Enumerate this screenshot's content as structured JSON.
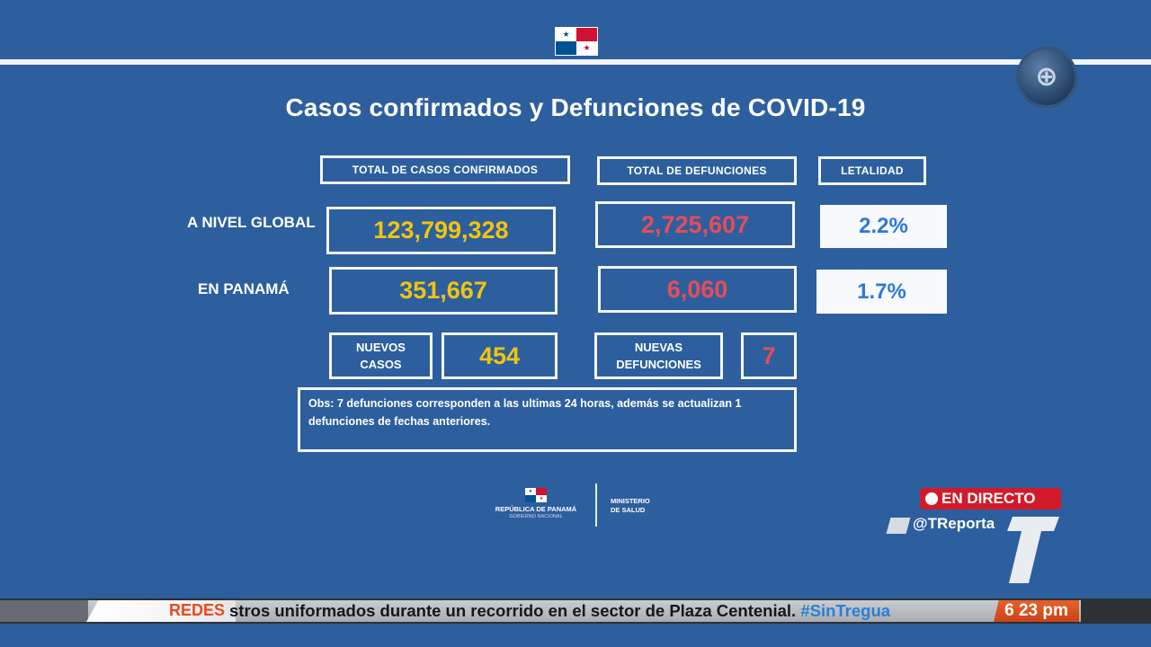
{
  "slide": {
    "title": "Casos confirmados y Defunciones de COVID-19",
    "headers": {
      "total_cases": "TOTAL DE CASOS CONFIRMADOS",
      "total_deaths": "TOTAL DE DEFUNCIONES",
      "lethality": "LETALIDAD"
    },
    "global": {
      "label": "A NIVEL GLOBAL",
      "cases": "123,799,328",
      "deaths": "2,725,607",
      "lethality": "2.2%"
    },
    "panama": {
      "label": "EN PANAMÁ",
      "cases": "351,667",
      "deaths": "6,060",
      "lethality": "1.7%"
    },
    "new_cases": {
      "label_line1": "NUEVOS",
      "label_line2": "CASOS",
      "value": "454"
    },
    "new_deaths": {
      "label_line1": "NUEVAS",
      "label_line2": "DEFUNCIONES",
      "value": "7"
    },
    "obs": "Obs: 7 defunciones corresponden a las ultimas 24 horas, además se actualizan  1 defunciones de fechas anteriores.",
    "footer": {
      "gov_line1": "REPÚBLICA DE PANAMÁ",
      "gov_line2": "GOBIERNO NACIONAL",
      "ministry_line1": "MINISTERIO",
      "ministry_line2": "DE SALUD"
    }
  },
  "broadcast": {
    "live_label": "EN DIRECTO",
    "handle": "@TReporta",
    "ticker_section": "REDES",
    "ticker_text": "stros uniformados durante un recorrido en el sector de Plaza Centenial.",
    "ticker_tag": "#SinTregua",
    "time": "6 23 pm"
  },
  "colors": {
    "background": "#2d5f9e",
    "cases_yellow": "#f1c40f",
    "deaths_red": "#e74c5b",
    "lethality_blue": "#2c7ad8",
    "live_red": "#d21a2a",
    "time_orange": "#e6622b"
  },
  "icons": [
    "panama-flag-icon",
    "tv-channel-logo-icon",
    "live-dot-icon",
    "t-brand-logo-icon"
  ]
}
